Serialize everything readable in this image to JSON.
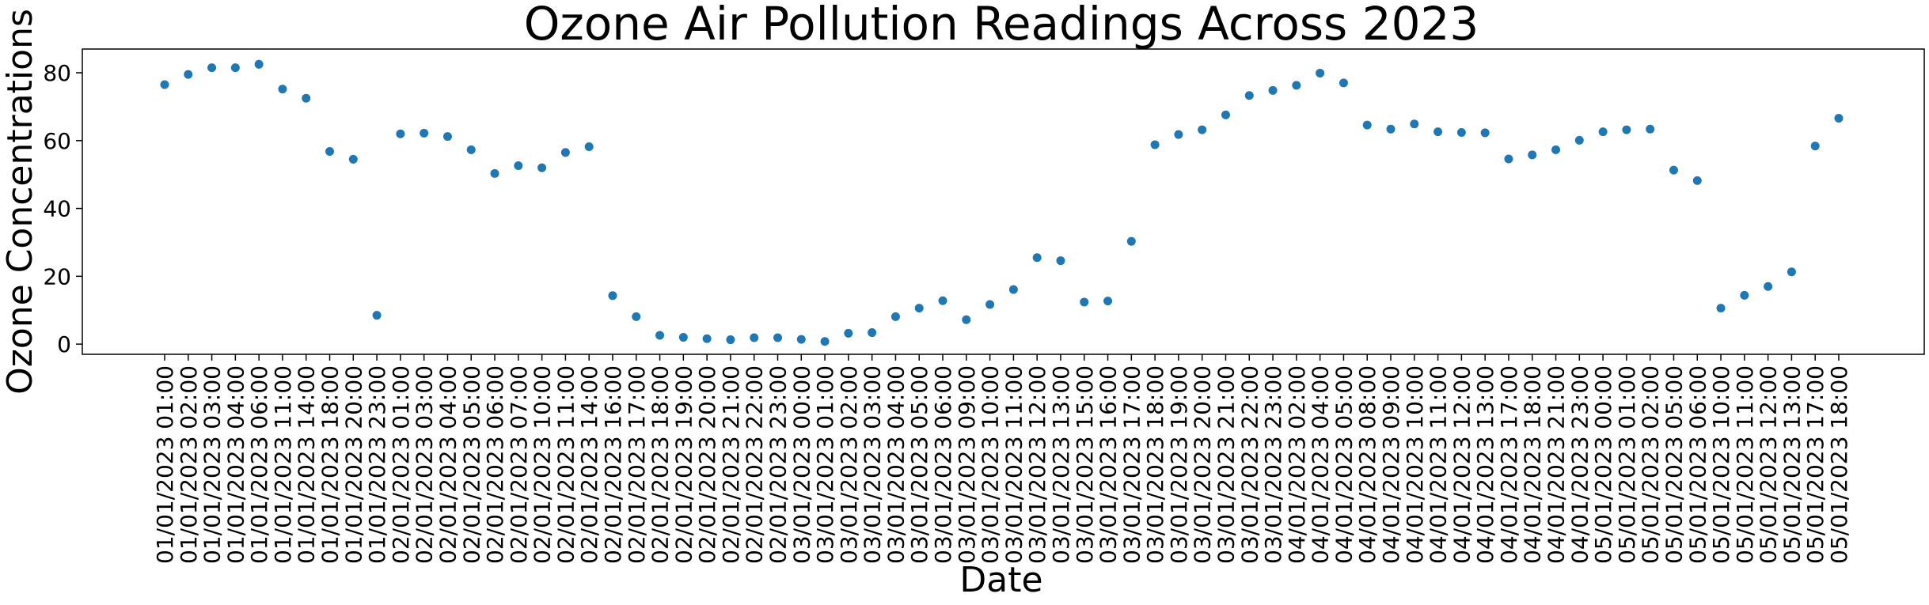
{
  "chart_data": {
    "type": "scatter",
    "title": "Ozone Air Pollution Readings Across 2023",
    "xlabel": "Date",
    "ylabel": "Ozone Concentrations",
    "ylim": [
      -3,
      87
    ],
    "yticks": [
      0,
      20,
      40,
      60,
      80
    ],
    "grid": false,
    "marker_color": "#1f77b4",
    "categories": [
      "01/01/2023 01:00",
      "01/01/2023 02:00",
      "01/01/2023 03:00",
      "01/01/2023 04:00",
      "01/01/2023 06:00",
      "01/01/2023 11:00",
      "01/01/2023 14:00",
      "01/01/2023 18:00",
      "01/01/2023 20:00",
      "01/01/2023 23:00",
      "02/01/2023 01:00",
      "02/01/2023 03:00",
      "02/01/2023 04:00",
      "02/01/2023 05:00",
      "02/01/2023 06:00",
      "02/01/2023 07:00",
      "02/01/2023 10:00",
      "02/01/2023 11:00",
      "02/01/2023 14:00",
      "02/01/2023 16:00",
      "02/01/2023 17:00",
      "02/01/2023 18:00",
      "02/01/2023 19:00",
      "02/01/2023 20:00",
      "02/01/2023 21:00",
      "02/01/2023 22:00",
      "02/01/2023 23:00",
      "03/01/2023 00:00",
      "03/01/2023 01:00",
      "03/01/2023 02:00",
      "03/01/2023 03:00",
      "03/01/2023 04:00",
      "03/01/2023 05:00",
      "03/01/2023 06:00",
      "03/01/2023 09:00",
      "03/01/2023 10:00",
      "03/01/2023 11:00",
      "03/01/2023 12:00",
      "03/01/2023 13:00",
      "03/01/2023 15:00",
      "03/01/2023 16:00",
      "03/01/2023 17:00",
      "03/01/2023 18:00",
      "03/01/2023 19:00",
      "03/01/2023 20:00",
      "03/01/2023 21:00",
      "03/01/2023 22:00",
      "03/01/2023 23:00",
      "04/01/2023 02:00",
      "04/01/2023 04:00",
      "04/01/2023 05:00",
      "04/01/2023 08:00",
      "04/01/2023 09:00",
      "04/01/2023 10:00",
      "04/01/2023 11:00",
      "04/01/2023 12:00",
      "04/01/2023 13:00",
      "04/01/2023 17:00",
      "04/01/2023 18:00",
      "04/01/2023 21:00",
      "04/01/2023 23:00",
      "05/01/2023 00:00",
      "05/01/2023 01:00",
      "05/01/2023 02:00",
      "05/01/2023 05:00",
      "05/01/2023 06:00",
      "05/01/2023 10:00",
      "05/01/2023 11:00",
      "05/01/2023 12:00",
      "05/01/2023 13:00",
      "05/01/2023 17:00",
      "05/01/2023 18:00"
    ],
    "values": [
      76.5,
      79.5,
      81.5,
      81.5,
      82.5,
      75.2,
      72.5,
      56.8,
      54.5,
      8.5,
      62.0,
      62.2,
      61.2,
      57.3,
      50.3,
      52.6,
      52.0,
      56.5,
      58.2,
      14.3,
      8.1,
      2.6,
      2.0,
      1.6,
      1.3,
      1.9,
      1.9,
      1.4,
      0.8,
      3.2,
      3.4,
      8.1,
      10.6,
      12.8,
      7.2,
      11.7,
      16.1,
      25.5,
      24.6,
      12.4,
      12.7,
      30.3,
      58.8,
      61.8,
      63.2,
      67.6,
      73.3,
      74.8,
      76.3,
      79.9,
      77.0,
      64.6,
      63.4,
      64.9,
      62.6,
      62.4,
      62.3,
      54.6,
      55.8,
      57.3,
      60.1,
      62.6,
      63.2,
      63.4,
      51.3,
      48.2,
      10.6,
      14.4,
      17.0,
      21.3,
      58.4,
      66.6
    ]
  }
}
